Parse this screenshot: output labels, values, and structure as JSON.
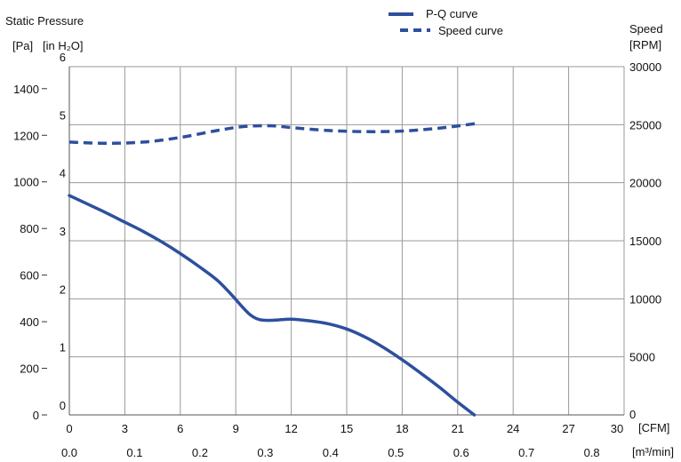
{
  "chart_data": {
    "type": "line",
    "title": "",
    "y_left_title": "Static Pressure",
    "y_left_unit_pa": "[Pa]",
    "y_left_unit_inh2o": "[in H₂O]",
    "y_right_title": "Speed",
    "y_right_unit": "[RPM]",
    "x_unit_cfm": "[CFM]",
    "x_unit_m3min": "[m³/min]",
    "x_cfm_ticks": [
      0,
      3,
      6,
      9,
      12,
      15,
      18,
      21,
      24,
      27,
      30
    ],
    "x_m3min_ticks": [
      "0.0",
      "0.1",
      "0.2",
      "0.3",
      "0.4",
      "0.5",
      "0.6",
      "0.7",
      "0.8"
    ],
    "y_pa_ticks": [
      0,
      200,
      400,
      600,
      800,
      1000,
      1200,
      1400
    ],
    "y_inh2o_ticks": [
      0,
      1,
      2,
      3,
      4,
      5,
      6
    ],
    "y_rpm_ticks": [
      0,
      5000,
      10000,
      15000,
      20000,
      25000,
      30000
    ],
    "xlim_cfm": [
      0,
      30
    ],
    "ylim_inh2o": [
      0,
      6
    ],
    "ylim_rpm": [
      0,
      30000
    ],
    "grid": true,
    "legend_position": "top-center",
    "series": [
      {
        "name": "P-Q curve",
        "style": "solid",
        "color": "#2d4f9e",
        "axis": "inh2o",
        "points": [
          [
            0,
            3.78
          ],
          [
            1,
            3.63
          ],
          [
            2,
            3.48
          ],
          [
            3,
            3.32
          ],
          [
            4,
            3.16
          ],
          [
            5,
            2.98
          ],
          [
            6,
            2.78
          ],
          [
            7,
            2.56
          ],
          [
            8,
            2.32
          ],
          [
            8.8,
            2.06
          ],
          [
            9.3,
            1.88
          ],
          [
            9.8,
            1.72
          ],
          [
            10.3,
            1.64
          ],
          [
            11,
            1.63
          ],
          [
            12,
            1.65
          ],
          [
            13,
            1.62
          ],
          [
            14,
            1.57
          ],
          [
            15,
            1.48
          ],
          [
            16,
            1.34
          ],
          [
            17,
            1.16
          ],
          [
            18,
            0.95
          ],
          [
            19,
            0.72
          ],
          [
            20,
            0.48
          ],
          [
            21,
            0.22
          ],
          [
            21.9,
            0
          ]
        ]
      },
      {
        "name": "Speed curve",
        "style": "dashed",
        "color": "#2d4f9e",
        "axis": "rpm",
        "points": [
          [
            0,
            23500
          ],
          [
            2,
            23400
          ],
          [
            4,
            23500
          ],
          [
            6,
            23900
          ],
          [
            8,
            24500
          ],
          [
            9.5,
            24850
          ],
          [
            11,
            24900
          ],
          [
            12,
            24750
          ],
          [
            14,
            24500
          ],
          [
            16,
            24400
          ],
          [
            18,
            24450
          ],
          [
            20,
            24700
          ],
          [
            22,
            25100
          ]
        ]
      }
    ]
  }
}
